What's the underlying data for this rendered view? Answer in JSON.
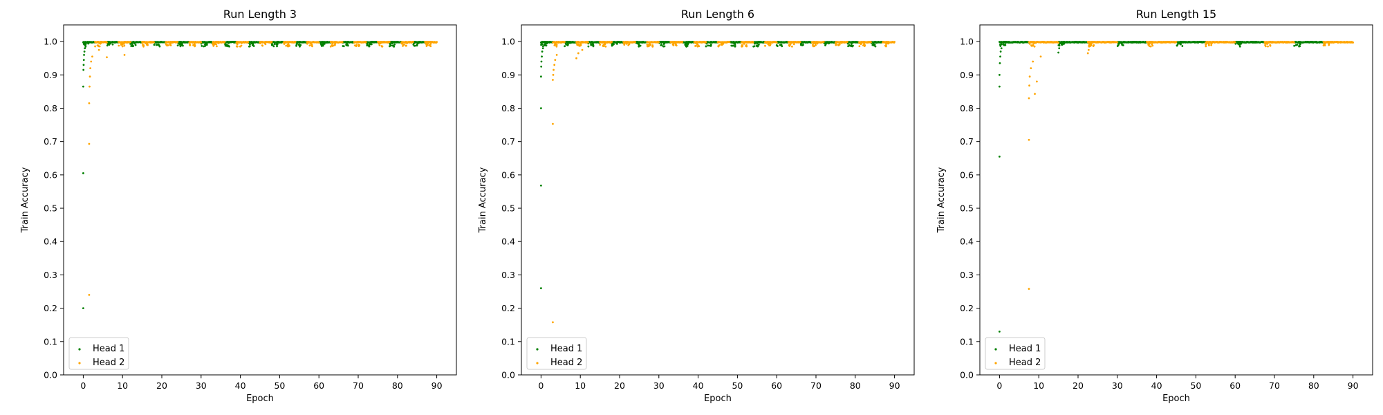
{
  "chart_data": [
    {
      "type": "scatter",
      "title": "Run Length 3",
      "xlabel": "Epoch",
      "ylabel": "Train Accuracy",
      "xlim": [
        -5,
        95
      ],
      "ylim": [
        0,
        1.05
      ],
      "xticks": [
        0,
        10,
        20,
        30,
        40,
        50,
        60,
        70,
        80,
        90
      ],
      "yticks": [
        0.0,
        0.1,
        0.2,
        0.3,
        0.4,
        0.5,
        0.6,
        0.7,
        0.8,
        0.9,
        1.0
      ],
      "xtick_labels": [
        "0",
        "10",
        "20",
        "30",
        "40",
        "50",
        "60",
        "70",
        "80",
        "90"
      ],
      "ytick_labels": [
        "0.0",
        "0.1",
        "0.2",
        "0.3",
        "0.4",
        "0.5",
        "0.6",
        "0.7",
        "0.8",
        "0.9",
        "1.0"
      ],
      "legend": "lower-left",
      "grid": false,
      "series": [
        {
          "name": "Head 1",
          "color": "#008000",
          "runs": [
            [
              0,
              3
            ],
            [
              6,
              9
            ],
            [
              12,
              15
            ],
            [
              18,
              21
            ],
            [
              24,
              27
            ],
            [
              30,
              33
            ],
            [
              36,
              39
            ],
            [
              42,
              45
            ],
            [
              48,
              51
            ],
            [
              54,
              57
            ],
            [
              60,
              63
            ],
            [
              66,
              69
            ],
            [
              72,
              75
            ],
            [
              78,
              81
            ],
            [
              84,
              87
            ]
          ],
          "outliers": [
            [
              0.0,
              0.2
            ],
            [
              0.0,
              0.605
            ],
            [
              0.0,
              0.865
            ],
            [
              0.05,
              0.915
            ],
            [
              0.1,
              0.93
            ],
            [
              0.15,
              0.945
            ],
            [
              0.2,
              0.96
            ],
            [
              0.3,
              0.97
            ],
            [
              0.4,
              0.98
            ],
            [
              0.6,
              0.985
            ]
          ]
        },
        {
          "name": "Head 2",
          "color": "#FFA500",
          "runs": [
            [
              3,
              6
            ],
            [
              9,
              12
            ],
            [
              15,
              18
            ],
            [
              21,
              24
            ],
            [
              27,
              30
            ],
            [
              33,
              36
            ],
            [
              39,
              42
            ],
            [
              45,
              48
            ],
            [
              51,
              54
            ],
            [
              57,
              60
            ],
            [
              63,
              66
            ],
            [
              69,
              72
            ],
            [
              75,
              78
            ],
            [
              81,
              84
            ],
            [
              87,
              90
            ]
          ],
          "outliers": [
            [
              1.5,
              0.24
            ],
            [
              1.5,
              0.693
            ],
            [
              1.5,
              0.815
            ],
            [
              1.6,
              0.865
            ],
            [
              1.7,
              0.895
            ],
            [
              1.8,
              0.92
            ],
            [
              2.0,
              0.94
            ],
            [
              2.3,
              0.955
            ],
            [
              6.0,
              0.953
            ],
            [
              10.5,
              0.96
            ],
            [
              4.0,
              0.975
            ]
          ]
        }
      ]
    },
    {
      "type": "scatter",
      "title": "Run Length 6",
      "xlabel": "Epoch",
      "ylabel": "Train Accuracy",
      "xlim": [
        -5,
        95
      ],
      "ylim": [
        0,
        1.05
      ],
      "xticks": [
        0,
        10,
        20,
        30,
        40,
        50,
        60,
        70,
        80,
        90
      ],
      "yticks": [
        0.0,
        0.1,
        0.2,
        0.3,
        0.4,
        0.5,
        0.6,
        0.7,
        0.8,
        0.9,
        1.0
      ],
      "xtick_labels": [
        "0",
        "10",
        "20",
        "30",
        "40",
        "50",
        "60",
        "70",
        "80",
        "90"
      ],
      "ytick_labels": [
        "0.0",
        "0.1",
        "0.2",
        "0.3",
        "0.4",
        "0.5",
        "0.6",
        "0.7",
        "0.8",
        "0.9",
        "1.0"
      ],
      "legend": "lower-left",
      "grid": false,
      "series": [
        {
          "name": "Head 1",
          "color": "#008000",
          "runs": [
            [
              0,
              3
            ],
            [
              6,
              9
            ],
            [
              12,
              15
            ],
            [
              18,
              21
            ],
            [
              24,
              27
            ],
            [
              30,
              33
            ],
            [
              36,
              39
            ],
            [
              42,
              45
            ],
            [
              48,
              51
            ],
            [
              54,
              57
            ],
            [
              60,
              63
            ],
            [
              66,
              69
            ],
            [
              72,
              75
            ],
            [
              78,
              81
            ],
            [
              84,
              87
            ]
          ],
          "outliers": [
            [
              0.0,
              0.26
            ],
            [
              0.0,
              0.568
            ],
            [
              0.0,
              0.8
            ],
            [
              0.0,
              0.895
            ],
            [
              0.05,
              0.925
            ],
            [
              0.1,
              0.94
            ],
            [
              0.2,
              0.955
            ],
            [
              0.3,
              0.97
            ],
            [
              0.5,
              0.98
            ],
            [
              0.8,
              0.99
            ]
          ]
        },
        {
          "name": "Head 2",
          "color": "#FFA500",
          "runs": [
            [
              3,
              6
            ],
            [
              9,
              12
            ],
            [
              15,
              18
            ],
            [
              21,
              24
            ],
            [
              27,
              30
            ],
            [
              33,
              36
            ],
            [
              39,
              42
            ],
            [
              45,
              48
            ],
            [
              51,
              54
            ],
            [
              57,
              60
            ],
            [
              63,
              66
            ],
            [
              69,
              72
            ],
            [
              75,
              78
            ],
            [
              81,
              84
            ],
            [
              87,
              90
            ]
          ],
          "outliers": [
            [
              3.0,
              0.158
            ],
            [
              3.0,
              0.753
            ],
            [
              3.0,
              0.885
            ],
            [
              3.1,
              0.9
            ],
            [
              3.2,
              0.915
            ],
            [
              3.4,
              0.93
            ],
            [
              3.6,
              0.945
            ],
            [
              4.0,
              0.96
            ],
            [
              9.0,
              0.95
            ],
            [
              9.5,
              0.965
            ],
            [
              10.5,
              0.975
            ]
          ]
        }
      ]
    },
    {
      "type": "scatter",
      "title": "Run Length 15",
      "xlabel": "Epoch",
      "ylabel": "Train Accuracy",
      "xlim": [
        -5,
        95
      ],
      "ylim": [
        0,
        1.05
      ],
      "xticks": [
        0,
        10,
        20,
        30,
        40,
        50,
        60,
        70,
        80,
        90
      ],
      "yticks": [
        0.0,
        0.1,
        0.2,
        0.3,
        0.4,
        0.5,
        0.6,
        0.7,
        0.8,
        0.9,
        1.0
      ],
      "xtick_labels": [
        "0",
        "10",
        "20",
        "30",
        "40",
        "50",
        "60",
        "70",
        "80",
        "90"
      ],
      "ytick_labels": [
        "0.0",
        "0.1",
        "0.2",
        "0.3",
        "0.4",
        "0.5",
        "0.6",
        "0.7",
        "0.8",
        "0.9",
        "1.0"
      ],
      "legend": "lower-left",
      "grid": false,
      "series": [
        {
          "name": "Head 1",
          "color": "#008000",
          "runs": [
            [
              0,
              7.5
            ],
            [
              15,
              22.5
            ],
            [
              30,
              37.5
            ],
            [
              45,
              52.5
            ],
            [
              60,
              67.5
            ],
            [
              75,
              82.5
            ]
          ],
          "outliers": [
            [
              0.0,
              0.13
            ],
            [
              0.0,
              0.655
            ],
            [
              0.0,
              0.865
            ],
            [
              0.0,
              0.9
            ],
            [
              0.1,
              0.935
            ],
            [
              0.2,
              0.955
            ],
            [
              0.3,
              0.97
            ],
            [
              0.5,
              0.98
            ],
            [
              15.0,
              0.967
            ],
            [
              15.2,
              0.98
            ]
          ]
        },
        {
          "name": "Head 2",
          "color": "#FFA500",
          "runs": [
            [
              7.5,
              15
            ],
            [
              22.5,
              30
            ],
            [
              37.5,
              45
            ],
            [
              52.5,
              60
            ],
            [
              67.5,
              75
            ],
            [
              82.5,
              90
            ]
          ],
          "outliers": [
            [
              7.5,
              0.258
            ],
            [
              7.5,
              0.705
            ],
            [
              7.5,
              0.83
            ],
            [
              7.6,
              0.868
            ],
            [
              7.7,
              0.895
            ],
            [
              8.0,
              0.92
            ],
            [
              9.0,
              0.843
            ],
            [
              9.5,
              0.88
            ],
            [
              8.5,
              0.94
            ],
            [
              10.5,
              0.955
            ],
            [
              22.5,
              0.965
            ],
            [
              22.7,
              0.975
            ]
          ]
        }
      ]
    }
  ]
}
